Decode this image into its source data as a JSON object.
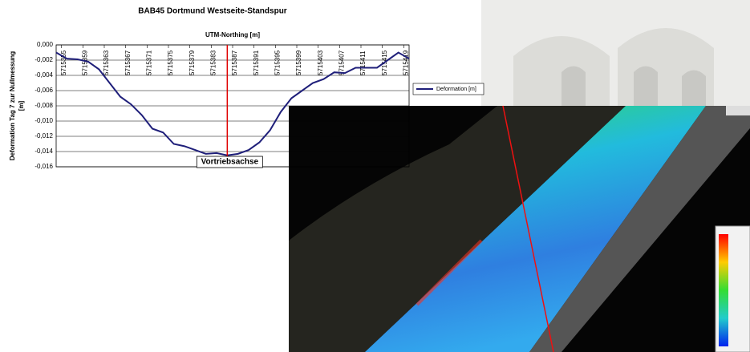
{
  "chart_data": {
    "type": "line",
    "title": "BAB45 Dortmund Westseite-Standspur",
    "xlabel": "UTM-Northing [m]",
    "ylabel": [
      "Deformation Tag 7 zur Nullmessung",
      "[m]"
    ],
    "x": [
      5715354,
      5715356,
      5715358,
      5715360,
      5715362,
      5715364,
      5715366,
      5715368,
      5715370,
      5715372,
      5715374,
      5715376,
      5715378,
      5715380,
      5715382,
      5715384,
      5715386,
      5715388,
      5715390,
      5715392,
      5715394,
      5715396,
      5715398,
      5715400,
      5715402,
      5715404,
      5715406,
      5715408,
      5715410,
      5715412,
      5715414,
      5715416,
      5715418,
      5715420
    ],
    "series": [
      {
        "name": "Deformation [m]",
        "color": "#1f1f7a",
        "values": [
          -0.001,
          -0.0018,
          -0.0019,
          -0.0022,
          -0.0032,
          -0.005,
          -0.0068,
          -0.0078,
          -0.0092,
          -0.011,
          -0.0115,
          -0.013,
          -0.0133,
          -0.0138,
          -0.0143,
          -0.0142,
          -0.0145,
          -0.0143,
          -0.0138,
          -0.0128,
          -0.0112,
          -0.0088,
          -0.007,
          -0.006,
          -0.005,
          -0.0045,
          -0.0036,
          -0.0037,
          -0.003,
          -0.003,
          -0.003,
          -0.002,
          -0.001,
          -0.0018
        ]
      }
    ],
    "xlim": [
      5715354,
      5715420
    ],
    "xticks": [
      5715355,
      5715359,
      5715363,
      5715367,
      5715371,
      5715375,
      5715379,
      5715383,
      5715387,
      5715391,
      5715395,
      5715399,
      5715403,
      5715407,
      5715411,
      5715415,
      5715419
    ],
    "ylim": [
      -0.016,
      0
    ],
    "yticks": [
      {
        "value": 0,
        "label": "0,000"
      },
      {
        "value": -0.002,
        "label": "-0,002"
      },
      {
        "value": -0.004,
        "label": "-0,004"
      },
      {
        "value": -0.006,
        "label": "-0,006"
      },
      {
        "value": -0.008,
        "label": "-0,008"
      },
      {
        "value": -0.01,
        "label": "-0,010"
      },
      {
        "value": -0.012,
        "label": "-0,012"
      },
      {
        "value": -0.014,
        "label": "-0,014"
      },
      {
        "value": -0.016,
        "label": "-0,016"
      }
    ],
    "grid": true,
    "legend": "right",
    "annotation": {
      "x": 5715386,
      "text": "Vortriebsachse",
      "color": "#e00000"
    }
  }
}
